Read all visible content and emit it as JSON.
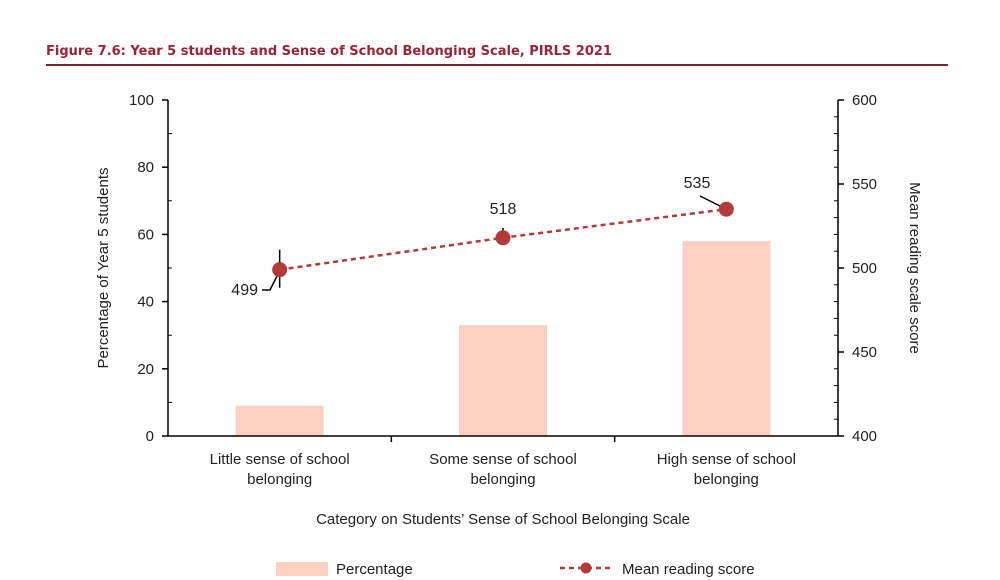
{
  "figure_title": "Figure 7.6: Year 5 students and Sense of School Belonging Scale, PIRLS 2021",
  "colors": {
    "bar": "#fcd0c0",
    "line": "#b33a3a",
    "title": "#9b2335",
    "rule": "#7a2232"
  },
  "chart_data": {
    "type": "bar",
    "categories": [
      [
        "Little sense of school",
        "belonging"
      ],
      [
        "Some sense of school",
        "belonging"
      ],
      [
        "High sense of school",
        "belonging"
      ]
    ],
    "series": [
      {
        "name": "Percentage",
        "type": "bar",
        "axis": "left",
        "values": [
          9,
          33,
          58
        ]
      },
      {
        "name": "Mean reading score",
        "type": "line",
        "axis": "right",
        "values": [
          499,
          518,
          535
        ]
      }
    ],
    "xlabel": "Category on Students’ Sense of School Belonging Scale",
    "ylabel_left": "Percentage of Year 5 students",
    "ylabel_right": "Mean reading scale score",
    "ylim_left": [
      0,
      100
    ],
    "yticks_left": [
      0,
      20,
      40,
      60,
      80,
      100
    ],
    "ylim_right": [
      400,
      600
    ],
    "yticks_right": [
      400,
      450,
      500,
      550,
      600
    ],
    "data_labels": [
      "499",
      "518",
      "535"
    ],
    "legend": [
      "Percentage",
      "Mean reading score"
    ],
    "legend_position": "bottom",
    "grid": false
  }
}
